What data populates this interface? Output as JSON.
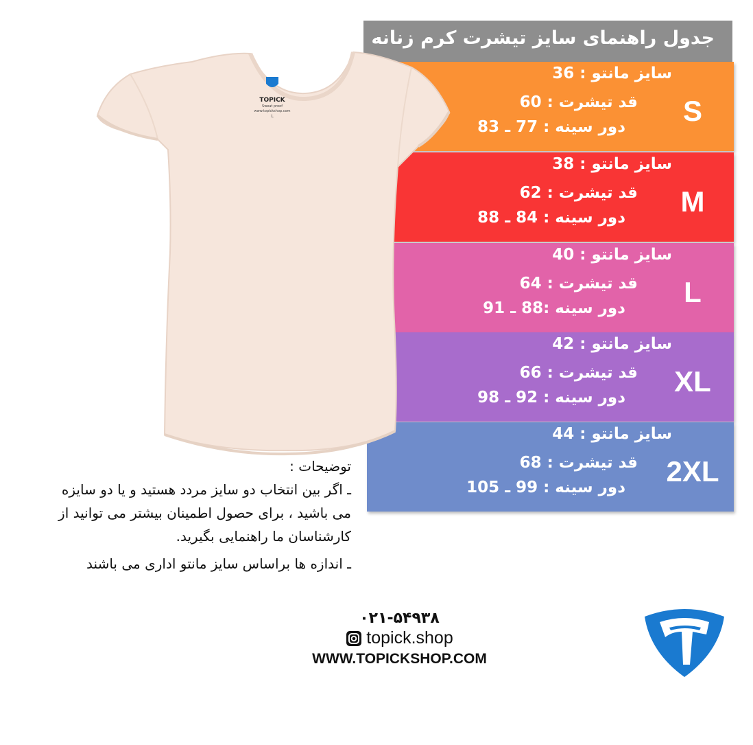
{
  "title": "جدول راهنمای سایز تیشرت کرم زنانه",
  "sizes": [
    {
      "size": "S",
      "manto": "سایز مانتو : 36",
      "length": "قد تیشرت :  60",
      "chest": "دور سینه : 77 ـ 83",
      "color": "#fb9134"
    },
    {
      "size": "M",
      "manto": "سایز مانتو : 38",
      "length": "قد تیشرت :  62",
      "chest": "دور سینه : 84  ـ  88",
      "color": "#f93535"
    },
    {
      "size": "L",
      "manto": "سایز مانتو : 40",
      "length": "قد تیشرت : 64",
      "chest": "دور سینه :88 ـ 91",
      "color": "#e263a9"
    },
    {
      "size": "XL",
      "manto": "سایز مانتو : 42",
      "length": "قد تیشرت : 66",
      "chest": "دور سینه : 92 ـ 98",
      "color": "#a86ccc"
    },
    {
      "size": "2XL",
      "manto": "سایز مانتو : 44",
      "length": "قد تیشرت : 68",
      "chest": "دور سینه : 99 ـ 105",
      "color": "#6f8ccb"
    }
  ],
  "notes": {
    "heading": "توضیحات :",
    "items": [
      "ـ اگر بین انتخاب دو سایز مردد هستید و یا دو سایزه می باشید ، برای حصول اطمینان بیشتر می توانید از کارشناسان ما راهنمایی بگیرید.",
      "ـ اندازه ها براساس سایز مانتو اداری می باشند"
    ]
  },
  "shirt_label": {
    "brand": "TOPICK",
    "sub": "Sweat proof",
    "site": "www.topickshop.com",
    "size": "L"
  },
  "contact": {
    "phone": "۰۲۱-۵۴۹۳۸",
    "instagram": "topick.shop",
    "website": "WWW.TOPICKSHOP.COM"
  },
  "brand_color": "#1a7ad0",
  "header_color": "#8e8e8e",
  "shirt_color": "#f6e6dc"
}
